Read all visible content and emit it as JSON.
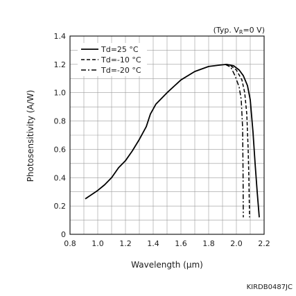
{
  "chart_data": {
    "type": "line",
    "title": "",
    "note_prefix": "(Typ. V",
    "note_sub": "R",
    "note_suffix": "=0 V)",
    "xlabel": "Wavelength (μm)",
    "ylabel": "Photosensitivity (A/W)",
    "xlim": [
      0.8,
      2.2
    ],
    "ylim": [
      0,
      1.4
    ],
    "x_ticks": [
      "0.8",
      "1.0",
      "1.2",
      "1.4",
      "1.6",
      "1.8",
      "2.0",
      "2.2"
    ],
    "y_ticks": [
      "0",
      "0.2",
      "0.4",
      "0.6",
      "0.8",
      "1.0",
      "1.2",
      "1.4"
    ],
    "grid": true,
    "legend_position": "top-left",
    "figure_code": "KIRDB0487JC",
    "series": [
      {
        "name": "Td=25 °C",
        "style": "solid",
        "points": [
          [
            0.91,
            0.25
          ],
          [
            1.0,
            0.31
          ],
          [
            1.05,
            0.35
          ],
          [
            1.1,
            0.4
          ],
          [
            1.15,
            0.47
          ],
          [
            1.2,
            0.52
          ],
          [
            1.25,
            0.59
          ],
          [
            1.3,
            0.67
          ],
          [
            1.35,
            0.76
          ],
          [
            1.38,
            0.85
          ],
          [
            1.42,
            0.92
          ],
          [
            1.5,
            1.0
          ],
          [
            1.6,
            1.09
          ],
          [
            1.7,
            1.15
          ],
          [
            1.8,
            1.185
          ],
          [
            1.88,
            1.195
          ],
          [
            1.93,
            1.2
          ],
          [
            1.98,
            1.19
          ],
          [
            2.02,
            1.16
          ],
          [
            2.05,
            1.12
          ],
          [
            2.08,
            1.05
          ],
          [
            2.1,
            0.95
          ],
          [
            2.12,
            0.72
          ],
          [
            2.135,
            0.5
          ],
          [
            2.15,
            0.3
          ],
          [
            2.165,
            0.12
          ]
        ]
      },
      {
        "name": "Td=-10 °C",
        "style": "dashed",
        "points": [
          [
            1.92,
            1.2
          ],
          [
            1.96,
            1.19
          ],
          [
            2.0,
            1.16
          ],
          [
            2.04,
            1.09
          ],
          [
            2.06,
            1.0
          ],
          [
            2.075,
            0.85
          ],
          [
            2.085,
            0.6
          ],
          [
            2.09,
            0.4
          ],
          [
            2.095,
            0.12
          ]
        ]
      },
      {
        "name": "Td=-20 °C",
        "style": "dashdot",
        "points": [
          [
            1.92,
            1.2
          ],
          [
            1.96,
            1.18
          ],
          [
            1.99,
            1.12
          ],
          [
            2.02,
            1.04
          ],
          [
            2.035,
            0.95
          ],
          [
            2.045,
            0.75
          ],
          [
            2.048,
            0.45
          ],
          [
            2.05,
            0.12
          ]
        ]
      }
    ]
  }
}
